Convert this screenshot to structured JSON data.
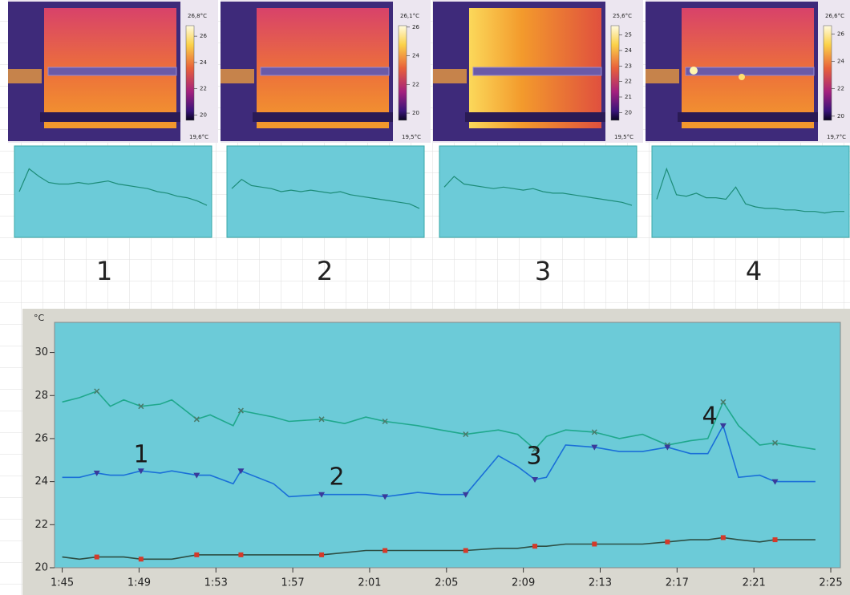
{
  "panels": [
    {
      "colorbar": {
        "ticks": [
          {
            "value": 26.8,
            "label": "26,8°C"
          },
          26,
          24,
          22,
          20,
          {
            "value": 19.6,
            "label": "19,6°C"
          }
        ]
      },
      "trend": {
        "ylim": [
          21,
          27
        ],
        "values": [
          24,
          25.5,
          25,
          24.6,
          24.5,
          24.5,
          24.6,
          24.5,
          24.6,
          24.7,
          24.5,
          24.4,
          24.3,
          24.2,
          24,
          23.9,
          23.7,
          23.6,
          23.4,
          23.1
        ]
      }
    },
    {
      "colorbar": {
        "ticks": [
          {
            "value": 26.1,
            "label": "26,1°C"
          },
          26,
          24,
          22,
          20,
          {
            "value": 19.5,
            "label": "19,5°C"
          }
        ]
      },
      "trend": {
        "ylim": [
          21,
          27
        ],
        "values": [
          24.2,
          24.8,
          24.4,
          24.3,
          24.2,
          24.0,
          24.1,
          24.0,
          24.1,
          24.0,
          23.9,
          24.0,
          23.8,
          23.7,
          23.6,
          23.5,
          23.4,
          23.3,
          23.2,
          22.9
        ]
      }
    },
    {
      "colorbar": {
        "ticks": [
          {
            "value": 25.6,
            "label": "25,6°C"
          },
          25,
          24,
          23,
          22,
          21,
          20,
          {
            "value": 19.5,
            "label": "19,5°C"
          }
        ]
      },
      "trend": {
        "ylim": [
          21,
          27
        ],
        "values": [
          24.3,
          25,
          24.5,
          24.4,
          24.3,
          24.2,
          24.3,
          24.2,
          24.1,
          24.2,
          24.0,
          23.9,
          23.9,
          23.8,
          23.7,
          23.6,
          23.5,
          23.4,
          23.3,
          23.1
        ]
      }
    },
    {
      "colorbar": {
        "ticks": [
          {
            "value": 26.6,
            "label": "26,6°C"
          },
          26,
          24,
          22,
          20,
          {
            "value": 19.7,
            "label": "19,7°C"
          }
        ]
      },
      "trend": {
        "ylim": [
          21,
          27
        ],
        "values": [
          23.5,
          25.5,
          23.8,
          23.7,
          23.9,
          23.6,
          23.6,
          23.5,
          24.3,
          23.2,
          23.0,
          22.9,
          22.9,
          22.8,
          22.8,
          22.7,
          22.7,
          22.6,
          22.7,
          22.7
        ]
      }
    }
  ],
  "panel_labels": [
    "1",
    "2",
    "3",
    "4"
  ],
  "chart_data": {
    "type": "line",
    "y_label": "°C",
    "x": [
      105,
      105.9,
      106.8,
      107.5,
      108.2,
      109.1,
      110.1,
      110.7,
      112.0,
      112.7,
      113.9,
      114.3,
      116.0,
      116.8,
      118.5,
      119.7,
      120.8,
      121.8,
      123.5,
      124.7,
      126.0,
      127.7,
      128.7,
      129.6,
      130.2,
      131.2,
      132.7,
      134.0,
      135.2,
      136.5,
      137.7,
      138.6,
      139.4,
      140.2,
      141.3,
      142.1,
      144.2
    ],
    "series": [
      {
        "color": "#1fa88c",
        "marker": "x",
        "values": [
          27.7,
          27.9,
          28.2,
          27.5,
          27.8,
          27.5,
          27.6,
          27.8,
          26.9,
          27.1,
          26.6,
          27.3,
          27.0,
          26.8,
          26.9,
          26.7,
          27.0,
          26.8,
          26.6,
          26.4,
          26.2,
          26.4,
          26.2,
          25.5,
          26.1,
          26.4,
          26.3,
          26.0,
          26.2,
          25.7,
          25.9,
          26.0,
          27.7,
          26.6,
          25.7,
          25.8,
          25.5
        ]
      },
      {
        "color": "#1a6fd8",
        "marker": "triangle",
        "values": [
          24.2,
          24.2,
          24.4,
          24.3,
          24.3,
          24.5,
          24.4,
          24.5,
          24.3,
          24.3,
          23.9,
          24.5,
          23.9,
          23.3,
          23.4,
          23.4,
          23.4,
          23.3,
          23.5,
          23.4,
          23.4,
          25.2,
          24.7,
          24.1,
          24.2,
          25.7,
          25.6,
          25.4,
          25.4,
          25.6,
          25.3,
          25.3,
          26.6,
          24.2,
          24.3,
          24.0,
          24.0
        ]
      },
      {
        "color": "#2d4f44",
        "marker": "square",
        "values": [
          20.5,
          20.4,
          20.5,
          20.5,
          20.5,
          20.4,
          20.4,
          20.4,
          20.6,
          20.6,
          20.6,
          20.6,
          20.6,
          20.6,
          20.6,
          20.7,
          20.8,
          20.8,
          20.8,
          20.8,
          20.8,
          20.9,
          20.9,
          21.0,
          21.0,
          21.1,
          21.1,
          21.1,
          21.1,
          21.2,
          21.3,
          21.3,
          21.4,
          21.3,
          21.2,
          21.3,
          21.3
        ]
      }
    ],
    "xlim": [
      104.6,
      145.5
    ],
    "ylim": [
      20,
      31.4
    ],
    "xticks": [
      {
        "value": 105,
        "label": "1:45"
      },
      {
        "value": 109,
        "label": "1:49"
      },
      {
        "value": 113,
        "label": "1:53"
      },
      {
        "value": 117,
        "label": "1:57"
      },
      {
        "value": 121,
        "label": "2:01"
      },
      {
        "value": 125,
        "label": "2:05"
      },
      {
        "value": 129,
        "label": "2:09"
      },
      {
        "value": 133,
        "label": "2:13"
      },
      {
        "value": 137,
        "label": "2:17"
      },
      {
        "value": 141,
        "label": "2:21"
      },
      {
        "value": 145,
        "label": "2:25"
      }
    ],
    "yticks": [
      20,
      22,
      24,
      26,
      28,
      30
    ],
    "annotations": [
      "1",
      "2",
      "3",
      "4"
    ]
  }
}
